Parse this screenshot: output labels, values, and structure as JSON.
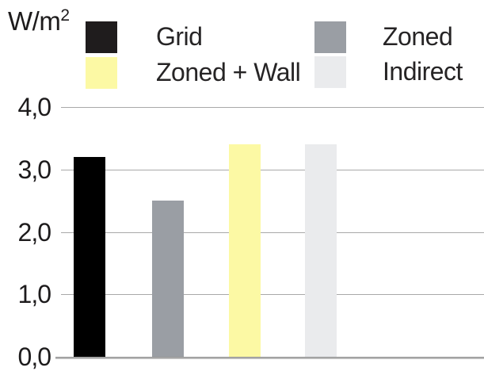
{
  "unit": {
    "base": "W/m",
    "exponent": "2"
  },
  "legend": {
    "columns": [
      {
        "items": [
          {
            "label": "Grid",
            "color": "#1f1c1d"
          },
          {
            "label": "Zoned + Wall",
            "color": "#fcf9a4"
          }
        ]
      },
      {
        "items": [
          {
            "label": "Zoned",
            "color": "#9a9ea4"
          },
          {
            "label": "Indirect",
            "color": "#eaebed"
          }
        ]
      }
    ]
  },
  "chart_data": {
    "type": "bar",
    "categories": [
      "Grid",
      "Zoned",
      "Zoned + Wall",
      "Indirect"
    ],
    "values": [
      3.2,
      2.5,
      3.4,
      3.4
    ],
    "bar_colors": [
      "#000000",
      "#9a9ea4",
      "#fcf9a4",
      "#eaebed"
    ],
    "title": "",
    "xlabel": "",
    "ylabel": "W/m2",
    "ylim": [
      0,
      4
    ],
    "yticks": [
      0,
      1,
      2,
      3,
      4
    ],
    "ytick_labels": [
      "0,0",
      "1,0",
      "2,0",
      "3,0",
      "4,0"
    ],
    "grid": true,
    "legend_position": "top"
  }
}
